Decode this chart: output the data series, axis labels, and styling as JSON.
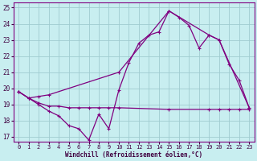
{
  "xlabel": "Windchill (Refroidissement éolien,°C)",
  "background_color": "#c8eef0",
  "grid_color": "#b0d8dc",
  "line_color": "#800080",
  "xlim": [
    -0.5,
    23.5
  ],
  "ylim": [
    16.7,
    25.3
  ],
  "yticks": [
    17,
    18,
    19,
    20,
    21,
    22,
    23,
    24,
    25
  ],
  "xticks": [
    0,
    1,
    2,
    3,
    4,
    5,
    6,
    7,
    8,
    9,
    10,
    11,
    12,
    13,
    14,
    15,
    16,
    17,
    18,
    19,
    20,
    21,
    22,
    23
  ],
  "line1_x": [
    0,
    1,
    2,
    3,
    4,
    5,
    6,
    7,
    8,
    9,
    10,
    11,
    12,
    13,
    14,
    15,
    16,
    17,
    18,
    19,
    20,
    21,
    22,
    23
  ],
  "line1_y": [
    19.8,
    19.4,
    19.0,
    18.6,
    18.3,
    17.7,
    17.5,
    16.8,
    18.4,
    17.5,
    19.9,
    21.6,
    22.8,
    23.3,
    23.5,
    24.8,
    24.4,
    23.9,
    22.5,
    23.3,
    23.0,
    21.5,
    20.5,
    18.8
  ],
  "line2_x": [
    0,
    1,
    2,
    3,
    10,
    15,
    19,
    20,
    23
  ],
  "line2_y": [
    19.8,
    19.4,
    19.5,
    19.6,
    21.0,
    24.8,
    23.3,
    23.0,
    18.8
  ],
  "line3_x": [
    0,
    1,
    2,
    3,
    4,
    5,
    6,
    7,
    8,
    9,
    10,
    15,
    19,
    20,
    21,
    22,
    23
  ],
  "line3_y": [
    19.8,
    19.4,
    19.1,
    18.9,
    18.9,
    18.8,
    18.8,
    18.8,
    18.8,
    18.8,
    18.8,
    18.7,
    18.7,
    18.7,
    18.7,
    18.7,
    18.7
  ]
}
